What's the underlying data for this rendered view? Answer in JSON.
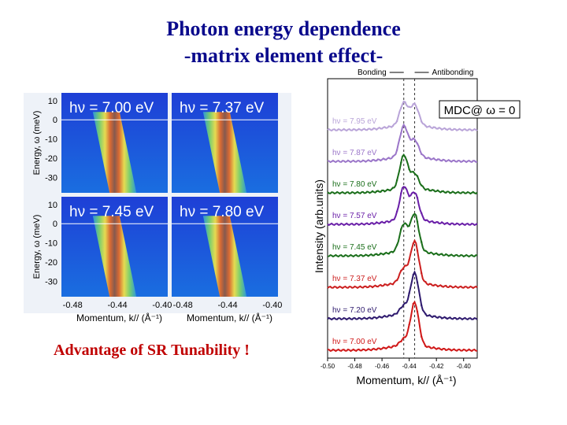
{
  "slide": {
    "title_line1": "Photon energy dependence",
    "title_line2": "-matrix element effect-",
    "advantage_text": "Advantage of SR Tunability !"
  },
  "chart_data": [
    {
      "type": "heatmap",
      "panels": [
        {
          "label": "hν = 7.00 eV"
        },
        {
          "label": "hν = 7.37 eV"
        },
        {
          "label": "hν = 7.45 eV"
        },
        {
          "label": "hν = 7.80 eV"
        }
      ],
      "ylabel": "Energy, ω (meV)",
      "xlabel": "Momentum, k// (Å⁻¹)",
      "yticks": [
        10,
        0,
        -10,
        -20,
        -30
      ],
      "xticks": [
        -0.48,
        -0.44,
        -0.4
      ],
      "ylim": [
        -38,
        14
      ],
      "xlim": [
        -0.49,
        -0.395
      ],
      "band": {
        "k_at_top": -0.45,
        "k_at_bottom": -0.435,
        "top_energy": 0,
        "bottom_energy": -38
      },
      "colormap": "blue-green-yellow-red-brown"
    },
    {
      "type": "line",
      "title": "",
      "annotation": "MDC@ ω = 0",
      "xlabel": "Momentum, k// (Å⁻¹)",
      "ylabel": "Intensity (arb.units)",
      "xticks": [
        -0.5,
        -0.48,
        -0.46,
        -0.44,
        -0.42,
        -0.4
      ],
      "xlim": [
        -0.5,
        -0.39
      ],
      "grid": false,
      "bonding_label": "Bonding",
      "antibonding_label": "Antibonding",
      "dashed_lines_k": [
        -0.444,
        -0.436
      ],
      "series": [
        {
          "name": "hν = 7.95 eV",
          "color": "#b9a4d8",
          "peak1": 0.55,
          "peak2": 0.5
        },
        {
          "name": "hν = 7.87 eV",
          "color": "#9b76c9",
          "peak1": 0.75,
          "peak2": 0.4
        },
        {
          "name": "hν = 7.80 eV",
          "color": "#1a6e1a",
          "peak1": 0.8,
          "peak2": 0.35
        },
        {
          "name": "hν = 7.57 eV",
          "color": "#6a1fa8",
          "peak1": 0.8,
          "peak2": 0.65
        },
        {
          "name": "hν = 7.45 eV",
          "color": "#1a6e1a",
          "peak1": 0.65,
          "peak2": 0.9
        },
        {
          "name": "hν = 7.37 eV",
          "color": "#cc1f1f",
          "peak1": 0.35,
          "peak2": 1.0
        },
        {
          "name": "hν = 7.20 eV",
          "color": "#2e1a6e",
          "peak1": 0.2,
          "peak2": 1.0
        },
        {
          "name": "hν = 7.00 eV",
          "color": "#d01818",
          "peak1": 0.15,
          "peak2": 1.05
        }
      ]
    }
  ]
}
